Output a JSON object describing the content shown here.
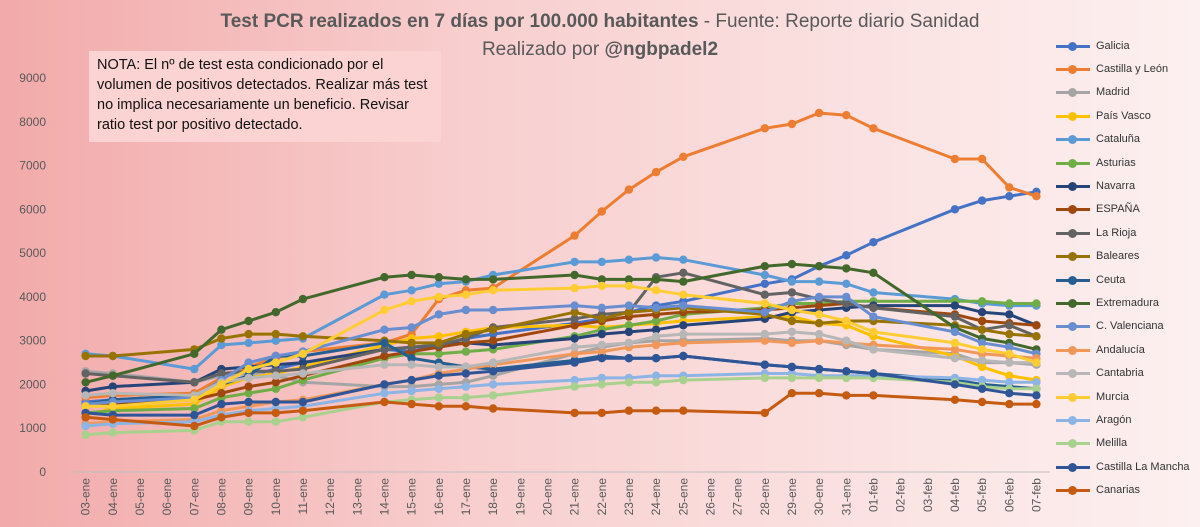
{
  "header": {
    "title_bold": "Test PCR realizados en 7 días por 100.000 habitantes",
    "title_rest": " - Fuente: Reporte diario Sanidad",
    "subtitle_plain": "Realizado por ",
    "subtitle_bold": "@ngbpadel2"
  },
  "note": {
    "text": "NOTA: El nº de test esta condicionado por el volumen de positivos detectados. Realizar más test no implica necesariamente un beneficio. Revisar ratio test por positivo detectado."
  },
  "chart_data": {
    "type": "line",
    "title": "Test PCR realizados en 7 días por 100.000 habitantes - Fuente: Reporte diario Sanidad",
    "ylim": [
      0,
      9000
    ],
    "yticks": [
      0,
      1000,
      2000,
      3000,
      4000,
      5000,
      6000,
      7000,
      8000,
      9000
    ],
    "grid": false,
    "legend_position": "right",
    "categories": [
      "03-ene",
      "04-ene",
      "05-ene",
      "06-ene",
      "07-ene",
      "08-ene",
      "09-ene",
      "10-ene",
      "11-ene",
      "12-ene",
      "13-ene",
      "14-ene",
      "15-ene",
      "16-ene",
      "17-ene",
      "18-ene",
      "19-ene",
      "20-ene",
      "21-ene",
      "22-ene",
      "23-ene",
      "24-ene",
      "25-ene",
      "26-ene",
      "27-ene",
      "28-ene",
      "29-ene",
      "30-ene",
      "31-ene",
      "01-feb",
      "02-feb",
      "03-feb",
      "04-feb",
      "05-feb",
      "06-feb",
      "07-feb"
    ],
    "series": [
      {
        "name": "Galicia",
        "color": "#4472c4",
        "values": [
          1600,
          1650,
          null,
          null,
          1750,
          1950,
          2200,
          2350,
          2500,
          null,
          null,
          2800,
          2750,
          2900,
          3050,
          3150,
          null,
          null,
          3400,
          3500,
          3650,
          3800,
          3900,
          null,
          null,
          4300,
          4400,
          4700,
          4950,
          5250,
          null,
          null,
          6000,
          6200,
          6300,
          6400
        ]
      },
      {
        "name": "Castilla y León",
        "color": "#ed7d31",
        "values": [
          1700,
          1750,
          null,
          null,
          1800,
          2150,
          2400,
          2600,
          2750,
          null,
          null,
          2950,
          3150,
          3950,
          4150,
          4200,
          null,
          null,
          5400,
          5950,
          6450,
          6850,
          7200,
          null,
          null,
          7850,
          7950,
          8200,
          8150,
          7850,
          null,
          null,
          7150,
          7150,
          6500,
          6300
        ]
      },
      {
        "name": "Madrid",
        "color": "#a5a5a5",
        "values": [
          2300,
          2250,
          null,
          null,
          2050,
          2200,
          2250,
          2200,
          2050,
          null,
          null,
          1950,
          1950,
          2000,
          2050,
          2200,
          null,
          null,
          2700,
          2850,
          2950,
          3000,
          3000,
          null,
          null,
          3050,
          3000,
          3000,
          2900,
          2800,
          null,
          null,
          2700,
          2500,
          2500,
          2450
        ]
      },
      {
        "name": "País Vasco",
        "color": "#ffc000",
        "values": [
          1300,
          1450,
          null,
          null,
          1550,
          1950,
          2150,
          2250,
          2400,
          null,
          null,
          2900,
          3050,
          3100,
          3200,
          3300,
          null,
          null,
          3350,
          3300,
          3350,
          3400,
          3450,
          null,
          null,
          3550,
          3550,
          3400,
          3350,
          3100,
          null,
          null,
          2650,
          2400,
          2200,
          2100
        ]
      },
      {
        "name": "Cataluña",
        "color": "#5b9bd5",
        "values": [
          2700,
          2650,
          null,
          null,
          2350,
          2900,
          2950,
          3000,
          3050,
          null,
          null,
          4050,
          4150,
          4300,
          4350,
          4500,
          null,
          null,
          4800,
          4800,
          4850,
          4900,
          4850,
          null,
          null,
          4500,
          4350,
          4350,
          4300,
          4100,
          null,
          null,
          3950,
          3850,
          3800,
          3800
        ]
      },
      {
        "name": "Asturias",
        "color": "#70ad47",
        "values": [
          1350,
          1400,
          null,
          null,
          1450,
          1700,
          1800,
          1900,
          2100,
          null,
          null,
          2600,
          2700,
          2700,
          2750,
          2800,
          null,
          null,
          3100,
          3250,
          3350,
          3450,
          3600,
          null,
          null,
          3750,
          3850,
          3850,
          3900,
          3900,
          null,
          null,
          3900,
          3900,
          3850,
          3850
        ]
      },
      {
        "name": "Navarra",
        "color": "#264478",
        "values": [
          1850,
          1950,
          null,
          null,
          2050,
          2350,
          2400,
          2450,
          2500,
          null,
          null,
          2800,
          2850,
          2900,
          2950,
          2900,
          null,
          null,
          3050,
          3150,
          3200,
          3250,
          3350,
          null,
          null,
          3500,
          3650,
          3700,
          3750,
          3800,
          null,
          null,
          3800,
          3650,
          3600,
          3350
        ]
      },
      {
        "name": "ESPAÑA",
        "color": "#9e480e",
        "values": [
          1500,
          1550,
          null,
          null,
          1650,
          1800,
          1950,
          2050,
          2200,
          null,
          null,
          2650,
          2750,
          2850,
          2950,
          3000,
          null,
          null,
          3350,
          3450,
          3550,
          3600,
          3650,
          null,
          null,
          3700,
          3750,
          3800,
          3850,
          3750,
          null,
          null,
          3600,
          3450,
          3400,
          3350
        ]
      },
      {
        "name": "La Rioja",
        "color": "#636363",
        "values": [
          2250,
          2200,
          null,
          null,
          2050,
          2250,
          2300,
          2300,
          2350,
          null,
          null,
          2800,
          2850,
          2900,
          3050,
          3300,
          null,
          null,
          3500,
          3600,
          3650,
          4450,
          4550,
          null,
          null,
          4050,
          4100,
          3950,
          3850,
          3750,
          null,
          null,
          3550,
          3250,
          3350,
          3100
        ]
      },
      {
        "name": "Baleares",
        "color": "#997300",
        "values": [
          2650,
          2650,
          null,
          null,
          2800,
          3050,
          3150,
          3150,
          3100,
          null,
          null,
          3000,
          2950,
          2950,
          3150,
          3250,
          null,
          null,
          3650,
          3500,
          3650,
          3700,
          3750,
          null,
          null,
          3600,
          3450,
          3400,
          3450,
          3450,
          null,
          null,
          3350,
          3250,
          3150,
          3100
        ]
      },
      {
        "name": "Ceuta",
        "color": "#255e91",
        "values": [
          1550,
          1650,
          null,
          null,
          1750,
          2000,
          2200,
          2650,
          2650,
          null,
          null,
          2950,
          2600,
          2500,
          2400,
          2350,
          null,
          null,
          2550,
          2650,
          2600,
          2600,
          2650,
          null,
          null,
          2450,
          2400,
          2350,
          2300,
          2250,
          null,
          null,
          2100,
          2000,
          1950,
          1900
        ]
      },
      {
        "name": "Extremadura",
        "color": "#43682b",
        "values": [
          2050,
          2200,
          null,
          null,
          2700,
          3250,
          3450,
          3650,
          3950,
          null,
          null,
          4450,
          4500,
          4450,
          4400,
          4400,
          null,
          null,
          4500,
          4400,
          4400,
          4400,
          4350,
          null,
          null,
          4700,
          4750,
          4700,
          4650,
          4550,
          null,
          null,
          3300,
          3050,
          2950,
          2800
        ]
      },
      {
        "name": "C. Valenciana",
        "color": "#698ed0",
        "values": [
          1550,
          1600,
          null,
          null,
          1700,
          2100,
          2500,
          2650,
          2750,
          null,
          null,
          3250,
          3300,
          3600,
          3700,
          3700,
          null,
          null,
          3800,
          3750,
          3800,
          3750,
          3800,
          null,
          null,
          3650,
          3900,
          4000,
          4000,
          3550,
          null,
          null,
          3200,
          2950,
          2850,
          2700
        ]
      },
      {
        "name": "Andalucía",
        "color": "#f1975a",
        "values": [
          1100,
          1150,
          null,
          null,
          1200,
          1400,
          1500,
          1600,
          1650,
          null,
          null,
          2000,
          2100,
          2250,
          2350,
          2450,
          null,
          null,
          2700,
          2750,
          2850,
          2900,
          2950,
          null,
          null,
          3000,
          2950,
          3000,
          2950,
          2900,
          null,
          null,
          2800,
          2700,
          2650,
          2600
        ]
      },
      {
        "name": "Cantabria",
        "color": "#b7b7b7",
        "values": [
          1750,
          1800,
          null,
          null,
          1750,
          2050,
          2150,
          2200,
          2250,
          null,
          null,
          2450,
          2450,
          2400,
          2400,
          2500,
          null,
          null,
          2850,
          2900,
          2950,
          3100,
          3150,
          null,
          null,
          3150,
          3200,
          3150,
          3000,
          2800,
          null,
          null,
          2600,
          2550,
          2500,
          2500
        ]
      },
      {
        "name": "Murcia",
        "color": "#ffcd33",
        "values": [
          1500,
          1500,
          null,
          null,
          1650,
          2000,
          2350,
          2500,
          2700,
          null,
          null,
          3700,
          3900,
          4000,
          4050,
          4150,
          null,
          null,
          4200,
          4250,
          4250,
          4150,
          4050,
          null,
          null,
          3850,
          3700,
          3600,
          3450,
          3200,
          null,
          null,
          2950,
          2800,
          2700,
          2500
        ]
      },
      {
        "name": "Aragón",
        "color": "#8cb4e4",
        "values": [
          1050,
          1100,
          null,
          null,
          1150,
          1300,
          1400,
          1450,
          1500,
          null,
          null,
          1800,
          1850,
          1900,
          1950,
          2000,
          null,
          null,
          2100,
          2150,
          2150,
          2200,
          2200,
          null,
          null,
          2250,
          2250,
          2200,
          2200,
          2200,
          null,
          null,
          2150,
          2100,
          2050,
          2050
        ]
      },
      {
        "name": "Melilla",
        "color": "#a9d18e",
        "values": [
          850,
          900,
          null,
          null,
          950,
          1150,
          1150,
          1150,
          1250,
          null,
          null,
          1600,
          1650,
          1700,
          1700,
          1750,
          null,
          null,
          1950,
          2000,
          2050,
          2050,
          2100,
          null,
          null,
          2150,
          2150,
          2150,
          2150,
          2150,
          null,
          null,
          2050,
          1950,
          1900,
          1900
        ]
      },
      {
        "name": "Castilla La Mancha",
        "color": "#2f5597",
        "values": [
          1350,
          1300,
          null,
          null,
          1300,
          1550,
          1600,
          1600,
          1600,
          null,
          null,
          2000,
          2100,
          2200,
          2250,
          2300,
          null,
          null,
          2500,
          2600,
          2600,
          2600,
          2650,
          null,
          null,
          2450,
          2400,
          2350,
          2300,
          2250,
          null,
          null,
          2000,
          1900,
          1800,
          1750
        ]
      },
      {
        "name": "Canarias",
        "color": "#c55a11",
        "values": [
          1250,
          1200,
          null,
          null,
          1050,
          1250,
          1350,
          1350,
          1400,
          null,
          null,
          1600,
          1550,
          1500,
          1500,
          1450,
          null,
          null,
          1350,
          1350,
          1400,
          1400,
          1400,
          null,
          null,
          1350,
          1800,
          1800,
          1750,
          1750,
          null,
          null,
          1650,
          1600,
          1550,
          1550
        ]
      }
    ]
  }
}
